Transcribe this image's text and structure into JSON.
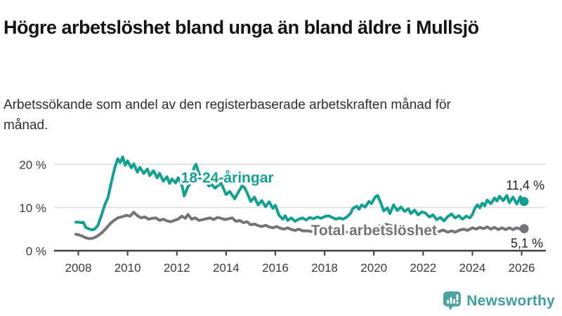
{
  "header": {
    "title": "Högre arbetslöshet bland unga än bland äldre i Mullsjö",
    "subtitle": "Arbetssökande som andel av den registerbaserade arbetskraften månad för månad."
  },
  "footer": {
    "brand": "Newsworthy",
    "brand_color": "#3f9f9c",
    "logo_icon": "bar-chart-speech-bubble-icon",
    "logo_icon_color": "#4ba4a2"
  },
  "chart_data": {
    "type": "line",
    "title": "Högre arbetslöshet bland unga än bland äldre i Mullsjö",
    "xlabel": "",
    "ylabel": "",
    "xlim": [
      2007.8,
      2026.35
    ],
    "ylim": [
      0,
      22.5
    ],
    "grid": "horizontal",
    "grid_color": "#dcdcdc",
    "axis_color": "#3f3f3f",
    "x_ticks": [
      "2008",
      "2010",
      "2012",
      "2014",
      "2016",
      "2018",
      "2020",
      "2022",
      "2024",
      "2026"
    ],
    "x_tick_years": [
      2008,
      2010,
      2012,
      2014,
      2016,
      2018,
      2020,
      2022,
      2024,
      2026
    ],
    "y_ticks": [
      {
        "value": 0,
        "label": "0 %"
      },
      {
        "value": 10,
        "label": "10 %"
      },
      {
        "value": 20,
        "label": "20 %"
      }
    ],
    "y_gridlines": [
      10,
      20
    ],
    "series": [
      {
        "name": "18-24-åringar",
        "color": "#12a191",
        "end_label": "11,4 %",
        "end_value": 11.4,
        "inline_label": {
          "text": "18-24-åringar",
          "x": 2014.05,
          "y": 15.8
        },
        "points": [
          [
            2007.9,
            6.6
          ],
          [
            2008.0,
            6.6
          ],
          [
            2008.1,
            6.5
          ],
          [
            2008.2,
            6.6
          ],
          [
            2008.3,
            5.4
          ],
          [
            2008.45,
            5.0
          ],
          [
            2008.6,
            4.8
          ],
          [
            2008.7,
            5.2
          ],
          [
            2008.8,
            5.9
          ],
          [
            2008.9,
            7.6
          ],
          [
            2009.0,
            9.3
          ],
          [
            2009.1,
            11.0
          ],
          [
            2009.2,
            12.2
          ],
          [
            2009.3,
            14.8
          ],
          [
            2009.4,
            17.4
          ],
          [
            2009.5,
            19.6
          ],
          [
            2009.6,
            21.3
          ],
          [
            2009.7,
            20.4
          ],
          [
            2009.8,
            21.7
          ],
          [
            2009.9,
            19.8
          ],
          [
            2010.0,
            20.8
          ],
          [
            2010.15,
            19.2
          ],
          [
            2010.25,
            20.1
          ],
          [
            2010.4,
            18.2
          ],
          [
            2010.5,
            19.3
          ],
          [
            2010.65,
            17.9
          ],
          [
            2010.8,
            18.9
          ],
          [
            2010.9,
            17.4
          ],
          [
            2011.05,
            18.5
          ],
          [
            2011.2,
            16.9
          ],
          [
            2011.3,
            17.9
          ],
          [
            2011.45,
            16.1
          ],
          [
            2011.6,
            17.1
          ],
          [
            2011.7,
            15.6
          ],
          [
            2011.8,
            16.6
          ],
          [
            2011.95,
            15.7
          ],
          [
            2012.05,
            16.9
          ],
          [
            2012.2,
            15.3
          ],
          [
            2012.3,
            12.7
          ],
          [
            2012.45,
            14.8
          ],
          [
            2012.6,
            16.1
          ],
          [
            2012.7,
            19.3
          ],
          [
            2012.78,
            20.0
          ],
          [
            2012.9,
            17.8
          ],
          [
            2013.0,
            16.8
          ],
          [
            2013.1,
            17.3
          ],
          [
            2013.2,
            16.2
          ],
          [
            2013.3,
            15.0
          ],
          [
            2013.4,
            15.4
          ],
          [
            2013.55,
            14.5
          ],
          [
            2013.7,
            15.2
          ],
          [
            2013.8,
            15.6
          ],
          [
            2013.9,
            14.3
          ],
          [
            2014.0,
            13.0
          ],
          [
            2014.15,
            13.7
          ],
          [
            2014.35,
            12.0
          ],
          [
            2014.5,
            13.6
          ],
          [
            2014.65,
            15.0
          ],
          [
            2014.75,
            14.6
          ],
          [
            2014.85,
            13.4
          ],
          [
            2015.0,
            11.4
          ],
          [
            2015.15,
            12.4
          ],
          [
            2015.3,
            10.6
          ],
          [
            2015.45,
            11.6
          ],
          [
            2015.6,
            10.2
          ],
          [
            2015.75,
            11.3
          ],
          [
            2015.9,
            9.8
          ],
          [
            2016.0,
            10.5
          ],
          [
            2016.15,
            8.2
          ],
          [
            2016.3,
            7.3
          ],
          [
            2016.4,
            8.1
          ],
          [
            2016.5,
            7.0
          ],
          [
            2016.65,
            7.6
          ],
          [
            2016.8,
            6.8
          ],
          [
            2016.95,
            7.3
          ],
          [
            2017.1,
            7.6
          ],
          [
            2017.25,
            7.1
          ],
          [
            2017.4,
            7.7
          ],
          [
            2017.55,
            7.4
          ],
          [
            2017.7,
            7.8
          ],
          [
            2017.85,
            7.5
          ],
          [
            2018.0,
            7.9
          ],
          [
            2018.15,
            8.1
          ],
          [
            2018.3,
            7.7
          ],
          [
            2018.45,
            7.3
          ],
          [
            2018.6,
            7.6
          ],
          [
            2018.75,
            7.3
          ],
          [
            2018.9,
            7.8
          ],
          [
            2019.05,
            8.6
          ],
          [
            2019.15,
            9.8
          ],
          [
            2019.3,
            10.3
          ],
          [
            2019.4,
            9.6
          ],
          [
            2019.5,
            10.6
          ],
          [
            2019.65,
            10.1
          ],
          [
            2019.8,
            11.4
          ],
          [
            2019.9,
            10.9
          ],
          [
            2020.05,
            12.4
          ],
          [
            2020.15,
            12.8
          ],
          [
            2020.3,
            10.8
          ],
          [
            2020.4,
            9.2
          ],
          [
            2020.55,
            9.9
          ],
          [
            2020.65,
            8.6
          ],
          [
            2020.8,
            10.6
          ],
          [
            2020.95,
            9.3
          ],
          [
            2021.1,
            10.1
          ],
          [
            2021.25,
            9.1
          ],
          [
            2021.4,
            9.7
          ],
          [
            2021.5,
            8.6
          ],
          [
            2021.65,
            9.4
          ],
          [
            2021.8,
            8.3
          ],
          [
            2021.95,
            9.0
          ],
          [
            2022.1,
            8.7
          ],
          [
            2022.25,
            7.8
          ],
          [
            2022.4,
            8.3
          ],
          [
            2022.55,
            7.2
          ],
          [
            2022.7,
            7.7
          ],
          [
            2022.85,
            6.9
          ],
          [
            2023.0,
            7.9
          ],
          [
            2023.15,
            8.5
          ],
          [
            2023.3,
            7.6
          ],
          [
            2023.45,
            8.1
          ],
          [
            2023.6,
            7.3
          ],
          [
            2023.75,
            8.0
          ],
          [
            2023.9,
            7.6
          ],
          [
            2024.0,
            8.4
          ],
          [
            2024.1,
            9.8
          ],
          [
            2024.2,
            10.6
          ],
          [
            2024.3,
            9.9
          ],
          [
            2024.4,
            11.0
          ],
          [
            2024.5,
            10.4
          ],
          [
            2024.6,
            11.7
          ],
          [
            2024.75,
            10.9
          ],
          [
            2024.9,
            12.2
          ],
          [
            2025.0,
            11.5
          ],
          [
            2025.1,
            12.6
          ],
          [
            2025.25,
            11.6
          ],
          [
            2025.4,
            12.8
          ],
          [
            2025.5,
            11.1
          ],
          [
            2025.65,
            12.4
          ],
          [
            2025.8,
            10.8
          ],
          [
            2025.95,
            12.5
          ],
          [
            2026.05,
            11.1
          ],
          [
            2026.1,
            11.4
          ]
        ]
      },
      {
        "name": "Total arbetslöshet",
        "color": "#737378",
        "end_label": "5,1 %",
        "end_value": 5.1,
        "inline_label": {
          "text": "Total arbetslöshet",
          "x": 2020.0,
          "y": 3.55
        },
        "points": [
          [
            2007.9,
            3.8
          ],
          [
            2008.0,
            3.7
          ],
          [
            2008.15,
            3.4
          ],
          [
            2008.3,
            3.0
          ],
          [
            2008.45,
            2.8
          ],
          [
            2008.6,
            2.9
          ],
          [
            2008.75,
            3.3
          ],
          [
            2008.9,
            3.9
          ],
          [
            2009.0,
            4.4
          ],
          [
            2009.15,
            5.3
          ],
          [
            2009.3,
            6.3
          ],
          [
            2009.45,
            7.0
          ],
          [
            2009.6,
            7.6
          ],
          [
            2009.8,
            7.9
          ],
          [
            2009.95,
            8.2
          ],
          [
            2010.1,
            8.0
          ],
          [
            2010.25,
            8.9
          ],
          [
            2010.4,
            8.1
          ],
          [
            2010.55,
            7.6
          ],
          [
            2010.7,
            7.8
          ],
          [
            2010.85,
            7.3
          ],
          [
            2011.0,
            7.5
          ],
          [
            2011.15,
            7.6
          ],
          [
            2011.3,
            7.0
          ],
          [
            2011.45,
            7.3
          ],
          [
            2011.6,
            6.9
          ],
          [
            2011.75,
            6.7
          ],
          [
            2011.9,
            7.0
          ],
          [
            2012.05,
            7.3
          ],
          [
            2012.2,
            8.0
          ],
          [
            2012.35,
            7.5
          ],
          [
            2012.45,
            8.4
          ],
          [
            2012.6,
            7.3
          ],
          [
            2012.75,
            7.6
          ],
          [
            2012.9,
            7.0
          ],
          [
            2013.05,
            7.2
          ],
          [
            2013.2,
            7.4
          ],
          [
            2013.35,
            7.6
          ],
          [
            2013.5,
            7.2
          ],
          [
            2013.65,
            7.7
          ],
          [
            2013.8,
            7.5
          ],
          [
            2013.95,
            7.2
          ],
          [
            2014.1,
            7.4
          ],
          [
            2014.25,
            7.6
          ],
          [
            2014.4,
            6.8
          ],
          [
            2014.55,
            7.0
          ],
          [
            2014.7,
            6.5
          ],
          [
            2014.85,
            6.7
          ],
          [
            2015.0,
            6.0
          ],
          [
            2015.15,
            6.2
          ],
          [
            2015.3,
            5.8
          ],
          [
            2015.45,
            5.6
          ],
          [
            2015.6,
            5.9
          ],
          [
            2015.75,
            5.5
          ],
          [
            2015.9,
            5.3
          ],
          [
            2016.05,
            5.6
          ],
          [
            2016.2,
            5.2
          ],
          [
            2016.35,
            5.0
          ],
          [
            2016.5,
            5.3
          ],
          [
            2016.65,
            4.9
          ],
          [
            2016.8,
            4.7
          ],
          [
            2016.95,
            5.0
          ],
          [
            2017.1,
            4.6
          ],
          [
            2017.3,
            4.6
          ],
          [
            2017.5,
            4.4
          ],
          [
            2017.7,
            4.6
          ],
          [
            2017.9,
            4.3
          ],
          [
            2018.1,
            4.5
          ],
          [
            2018.3,
            4.4
          ],
          [
            2018.5,
            4.2
          ],
          [
            2018.7,
            4.4
          ],
          [
            2018.9,
            4.3
          ],
          [
            2019.1,
            4.4
          ],
          [
            2019.3,
            4.3
          ],
          [
            2019.5,
            4.6
          ],
          [
            2019.7,
            4.7
          ],
          [
            2019.9,
            4.9
          ],
          [
            2020.1,
            5.4
          ],
          [
            2020.3,
            5.9
          ],
          [
            2020.5,
            6.1
          ],
          [
            2020.7,
            5.8
          ],
          [
            2020.9,
            5.6
          ],
          [
            2021.1,
            5.4
          ],
          [
            2021.3,
            5.2
          ],
          [
            2021.5,
            5.0
          ],
          [
            2021.7,
            4.8
          ],
          [
            2021.9,
            4.6
          ],
          [
            2022.1,
            4.5
          ],
          [
            2022.3,
            4.4
          ],
          [
            2022.45,
            4.6
          ],
          [
            2022.6,
            4.3
          ],
          [
            2022.8,
            4.8
          ],
          [
            2023.0,
            4.3
          ],
          [
            2023.15,
            4.6
          ],
          [
            2023.3,
            4.3
          ],
          [
            2023.5,
            4.8
          ],
          [
            2023.65,
            5.0
          ],
          [
            2023.8,
            4.7
          ],
          [
            2024.0,
            5.3
          ],
          [
            2024.15,
            5.0
          ],
          [
            2024.3,
            5.4
          ],
          [
            2024.45,
            5.1
          ],
          [
            2024.6,
            5.5
          ],
          [
            2024.75,
            5.0
          ],
          [
            2024.9,
            5.4
          ],
          [
            2025.05,
            4.9
          ],
          [
            2025.2,
            5.3
          ],
          [
            2025.35,
            4.9
          ],
          [
            2025.5,
            5.3
          ],
          [
            2025.65,
            4.9
          ],
          [
            2025.8,
            5.3
          ],
          [
            2025.95,
            5.0
          ],
          [
            2026.1,
            5.1
          ]
        ]
      }
    ]
  }
}
